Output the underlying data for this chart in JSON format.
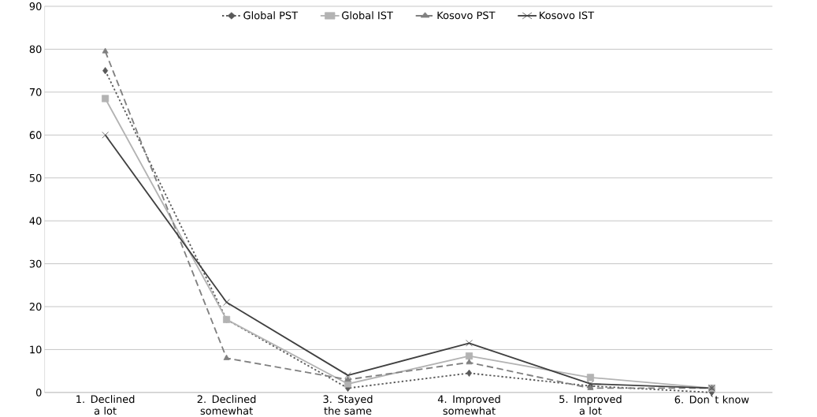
{
  "chart_data": {
    "type": "line",
    "categories": [
      "1. Declined a lot",
      "2. Declined somewhat",
      "3. Stayed the same",
      "4. Improved somewhat",
      "5. Improved a lot",
      "6. Don`t know"
    ],
    "series": [
      {
        "name": "Global PST",
        "color": "#595959",
        "marker": "diamond",
        "line_style": "dotted",
        "values": [
          75,
          17,
          1,
          4.5,
          1.5,
          0
        ]
      },
      {
        "name": "Global IST",
        "color": "#b3b3b3",
        "marker": "square",
        "line_style": "solid",
        "values": [
          68.5,
          17,
          2,
          8.5,
          3.5,
          1
        ]
      },
      {
        "name": "Kosovo PST",
        "color": "#808080",
        "marker": "triangle",
        "line_style": "dashed",
        "values": [
          79.5,
          8,
          3,
          7,
          1,
          1
        ]
      },
      {
        "name": "Kosovo IST",
        "color": "#404040",
        "marker": "cross",
        "line_style": "solid",
        "values": [
          60,
          21,
          4,
          11.5,
          2,
          1
        ]
      }
    ],
    "ylim": [
      0,
      90
    ],
    "yticks": [
      0,
      10,
      20,
      30,
      40,
      50,
      60,
      70,
      80,
      90
    ],
    "grid": "y",
    "legend": "top"
  }
}
